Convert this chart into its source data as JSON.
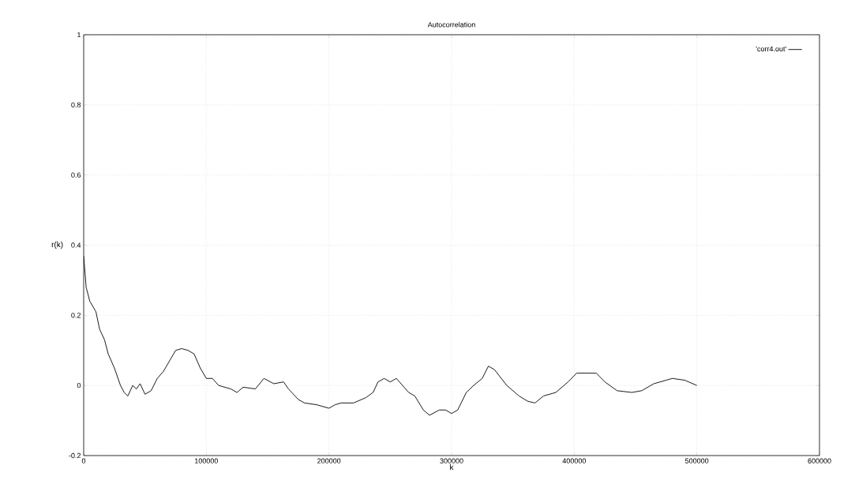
{
  "chart_data": {
    "type": "line",
    "title": "Autocorrelation",
    "xlabel": "k",
    "ylabel": "r(k)",
    "xlim": [
      0,
      600000
    ],
    "ylim": [
      -0.2,
      1
    ],
    "xticks": [
      0,
      100000,
      200000,
      300000,
      400000,
      500000,
      600000
    ],
    "yticks": [
      -0.2,
      0,
      0.2,
      0.4,
      0.6,
      0.8,
      1
    ],
    "grid": true,
    "legend": "top right",
    "marker": "none",
    "line_style": "solid",
    "series": [
      {
        "name": "'corr4.out'",
        "color": "#000000",
        "x": [
          0,
          2000,
          5000,
          10000,
          13000,
          17000,
          20000,
          25000,
          30000,
          33000,
          36000,
          40000,
          43000,
          46000,
          50000,
          55000,
          60000,
          65000,
          70000,
          75000,
          80000,
          85000,
          90000,
          95000,
          100000,
          105000,
          110000,
          120000,
          125000,
          130000,
          140000,
          147000,
          155000,
          163000,
          167000,
          175000,
          180000,
          190000,
          200000,
          205000,
          210000,
          220000,
          230000,
          236000,
          240000,
          245000,
          250000,
          255000,
          265000,
          270000,
          277000,
          282000,
          290000,
          295000,
          300000,
          305000,
          312000,
          318000,
          325000,
          330000,
          335000,
          345000,
          355000,
          362000,
          368000,
          375000,
          385000,
          395000,
          402000,
          410000,
          418000,
          425000,
          435000,
          447000,
          455000,
          465000,
          475000,
          480000,
          490000,
          500000
        ],
        "values": [
          0.37,
          0.28,
          0.24,
          0.21,
          0.16,
          0.13,
          0.09,
          0.05,
          0.0,
          -0.02,
          -0.03,
          0.0,
          -0.01,
          0.005,
          -0.025,
          -0.015,
          0.02,
          0.04,
          0.07,
          0.1,
          0.105,
          0.1,
          0.09,
          0.05,
          0.02,
          0.02,
          0.0,
          -0.01,
          -0.02,
          -0.005,
          -0.01,
          0.02,
          0.005,
          0.01,
          -0.01,
          -0.04,
          -0.05,
          -0.055,
          -0.065,
          -0.055,
          -0.05,
          -0.05,
          -0.035,
          -0.02,
          0.01,
          0.02,
          0.01,
          0.02,
          -0.02,
          -0.03,
          -0.07,
          -0.085,
          -0.07,
          -0.07,
          -0.08,
          -0.07,
          -0.02,
          0.0,
          0.02,
          0.055,
          0.045,
          0.0,
          -0.03,
          -0.045,
          -0.05,
          -0.03,
          -0.02,
          0.01,
          0.035,
          0.035,
          0.035,
          0.01,
          -0.015,
          -0.02,
          -0.015,
          0.005,
          0.015,
          0.02,
          0.015,
          0.0
        ]
      }
    ]
  }
}
